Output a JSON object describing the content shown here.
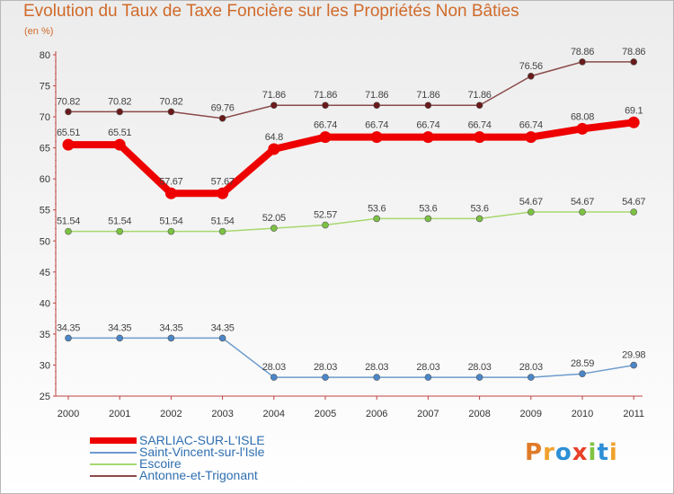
{
  "chart_data": {
    "type": "line",
    "title": "Evolution du Taux de Taxe Foncière sur les Propriétés Non Bâties",
    "subtitle": "(en %)",
    "x": [
      "2000",
      "2001",
      "2002",
      "2003",
      "2004",
      "2005",
      "2006",
      "2007",
      "2008",
      "2009",
      "2010",
      "2011"
    ],
    "ylim": [
      25,
      80
    ],
    "yticks": [
      25,
      30,
      35,
      40,
      45,
      50,
      55,
      60,
      65,
      70,
      75,
      80
    ],
    "grid": false,
    "legend_position": "bottom-left",
    "series": [
      {
        "name": "SARLIAC-SUR-L'ISLE",
        "color": "#ee0000",
        "marker": "#ee0000",
        "emphasis": true,
        "values": [
          65.51,
          65.51,
          57.67,
          57.67,
          64.8,
          66.74,
          66.74,
          66.74,
          66.74,
          66.74,
          68.08,
          69.1
        ],
        "labels": [
          "65.51",
          "65.51",
          "57.67",
          "57.67",
          "64.8",
          "66.74",
          "66.74",
          "66.74",
          "66.74",
          "66.74",
          "68.08",
          "69.1"
        ]
      },
      {
        "name": "Saint-Vincent-sur-l'Isle",
        "color": "#6c9bcd",
        "marker": "#4a86c8",
        "emphasis": false,
        "values": [
          34.35,
          34.35,
          34.35,
          34.35,
          28.03,
          28.03,
          28.03,
          28.03,
          28.03,
          28.03,
          28.59,
          29.98
        ],
        "labels": [
          "34.35",
          "34.35",
          "34.35",
          "34.35",
          "28.03",
          "28.03",
          "28.03",
          "28.03",
          "28.03",
          "28.03",
          "28.59",
          "29.98"
        ]
      },
      {
        "name": "Escoire",
        "color": "#a6d86e",
        "marker": "#7cc242",
        "emphasis": false,
        "values": [
          51.54,
          51.54,
          51.54,
          51.54,
          52.05,
          52.57,
          53.6,
          53.6,
          53.6,
          54.67,
          54.67,
          54.67
        ],
        "labels": [
          "51.54",
          "51.54",
          "51.54",
          "51.54",
          "52.05",
          "52.57",
          "53.6",
          "53.6",
          "53.6",
          "54.67",
          "54.67",
          "54.67"
        ]
      },
      {
        "name": "Antonne-et-Trigonant",
        "color": "#8b4a4a",
        "marker": "#6a1a1a",
        "emphasis": false,
        "values": [
          70.82,
          70.82,
          70.82,
          69.76,
          71.86,
          71.86,
          71.86,
          71.86,
          71.86,
          76.56,
          78.86,
          78.86
        ],
        "labels": [
          "70.82",
          "70.82",
          "70.82",
          "69.76",
          "71.86",
          "71.86",
          "71.86",
          "71.86",
          "71.86",
          "76.56",
          "78.86",
          "78.86"
        ]
      }
    ]
  },
  "logo": {
    "letters": [
      "P",
      "r",
      "o",
      "x",
      "i",
      "t",
      "i"
    ],
    "colors": [
      "#e07b2a",
      "#f0a22e",
      "#2d8fd6",
      "#e8402a",
      "#82c341",
      "#2d8fd6",
      "#f0a22e"
    ]
  }
}
